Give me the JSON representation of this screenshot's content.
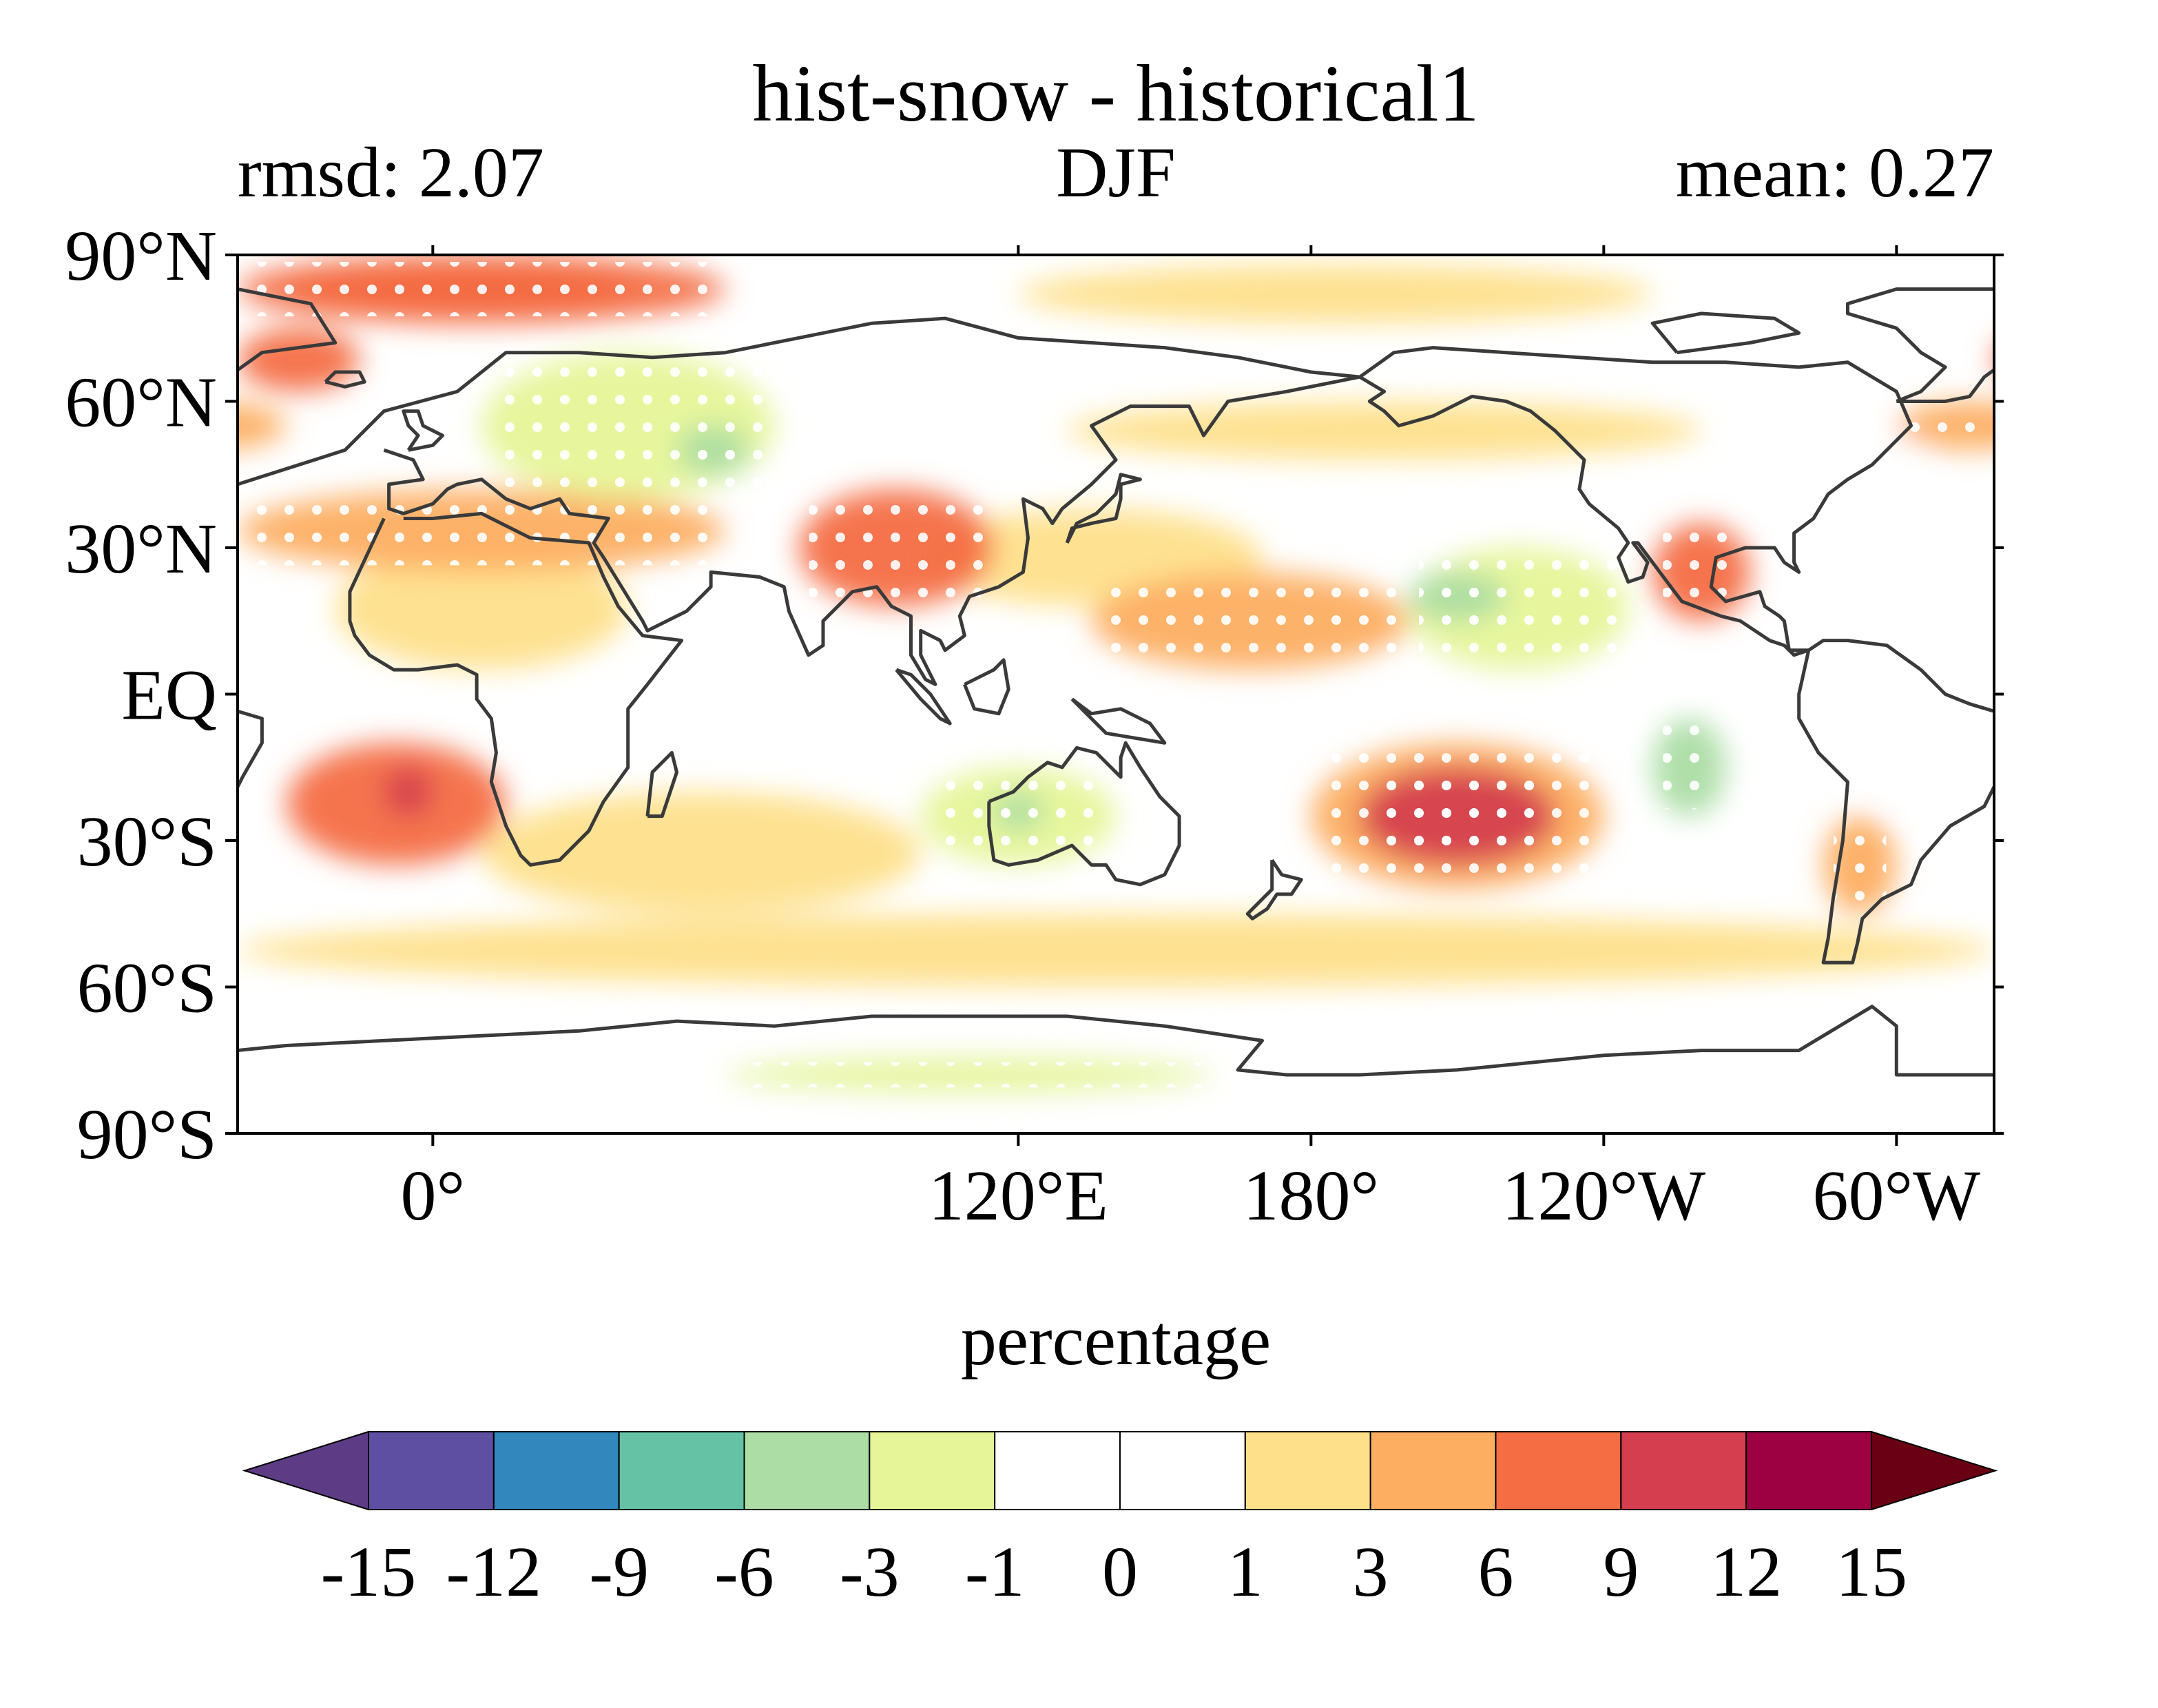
{
  "title": "hist-snow - historical1",
  "subtitle_left": "rmsd: 2.07",
  "subtitle_center": "DJF",
  "subtitle_right": "mean: 0.27",
  "map": {
    "projection": "PlateCarree",
    "central_longitude": 180,
    "lon_range": [
      -40,
      320
    ],
    "lat_range": [
      -90,
      90
    ],
    "lat_ticks": [
      {
        "value": 90,
        "label": "90°N"
      },
      {
        "value": 60,
        "label": "60°N"
      },
      {
        "value": 30,
        "label": "30°N"
      },
      {
        "value": 0,
        "label": "EQ"
      },
      {
        "value": -30,
        "label": "30°S"
      },
      {
        "value": -60,
        "label": "60°S"
      },
      {
        "value": -90,
        "label": "90°S"
      }
    ],
    "lon_ticks": [
      {
        "value": 120,
        "label": "120°E"
      },
      {
        "value": 180,
        "label": "180°"
      },
      {
        "value": 240,
        "label": "120°W"
      },
      {
        "value": 300,
        "label": "60°W"
      },
      {
        "value": 360,
        "label": "0°"
      }
    ],
    "coastline_color": "#3a3a3a",
    "stipple_color": "#ffffff"
  },
  "colorbar": {
    "label": "percentage",
    "boundaries": [
      -15,
      -12,
      -9,
      -6,
      -3,
      -1,
      0,
      1,
      3,
      6,
      9,
      12,
      15
    ],
    "tick_labels": [
      "-15",
      "-12",
      "-9",
      "-6",
      "-3",
      "-1",
      "0",
      "1",
      "3",
      "6",
      "9",
      "12",
      "15"
    ],
    "under_color": "#5e3c85",
    "over_color": "#6a0014",
    "colors": [
      "#5e4fa2",
      "#3288bd",
      "#66c2a5",
      "#abdda4",
      "#e6f598",
      "#ffffff",
      "#ffffff",
      "#fee08b",
      "#fdae61",
      "#f46d43",
      "#d53e4f",
      "#9e0142"
    ]
  },
  "chart_data": {
    "type": "heatmap",
    "title": "hist-snow - historical1",
    "variable_units": "percentage",
    "season": "DJF",
    "stats": {
      "rmsd": 2.07,
      "mean": 0.27
    },
    "xlim": [
      -40,
      320
    ],
    "ylim": [
      -90,
      90
    ],
    "anomaly_regions": [
      {
        "name": "arctic-siberia-band",
        "lon": [
          -40,
          60
        ],
        "lat": [
          76,
          90
        ],
        "value": 6
      },
      {
        "name": "arctic-eastern-band",
        "lon": [
          120,
          250
        ],
        "lat": [
          76,
          88
        ],
        "value": 1
      },
      {
        "name": "arctic-atlantic-band",
        "lon": [
          330,
          400
        ],
        "lat": [
          76,
          90
        ],
        "value": 6
      },
      {
        "name": "greenland-east",
        "lon": [
          320,
          345
        ],
        "lat": [
          62,
          75
        ],
        "value": 6
      },
      {
        "name": "north-atlantic",
        "lon": [
          300,
          330
        ],
        "lat": [
          50,
          60
        ],
        "value": 3
      },
      {
        "name": "north-africa",
        "lon": [
          340,
          400
        ],
        "lat": [
          5,
          30
        ],
        "value": 1
      },
      {
        "name": "sahara-band",
        "lon": [
          -40,
          60
        ],
        "lat": [
          25,
          42
        ],
        "value": 3
      },
      {
        "name": "east-china-sea",
        "lon": [
          75,
          115
        ],
        "lat": [
          18,
          42
        ],
        "value": 6
      },
      {
        "name": "north-pacific-band",
        "lon": [
          130,
          260
        ],
        "lat": [
          48,
          60
        ],
        "value": 1
      },
      {
        "name": "north-pacific-west",
        "lon": [
          100,
          170
        ],
        "lat": [
          18,
          38
        ],
        "value": 1
      },
      {
        "name": "central-siberia",
        "lon": [
          10,
          70
        ],
        "lat": [
          40,
          70
        ],
        "value": -3
      },
      {
        "name": "mongolia",
        "lon": [
          50,
          65
        ],
        "lat": [
          45,
          55
        ],
        "value": -6
      },
      {
        "name": "north-america-east",
        "lon": [
          270,
          305
        ],
        "lat": [
          38,
          60
        ],
        "value": -1
      },
      {
        "name": "western-pacific-subtrop",
        "lon": [
          135,
          200
        ],
        "lat": [
          5,
          25
        ],
        "value": 3
      },
      {
        "name": "central-pacific-band",
        "lon": [
          200,
          245
        ],
        "lat": [
          5,
          30
        ],
        "value": -3
      },
      {
        "name": "central-pacific-low",
        "lon": [
          200,
          220
        ],
        "lat": [
          15,
          25
        ],
        "value": -6
      },
      {
        "name": "east-pacific-low",
        "lon": [
          250,
          265
        ],
        "lat": [
          -25,
          -5
        ],
        "value": -6
      },
      {
        "name": "south-pacific-high",
        "lon": [
          190,
          230
        ],
        "lat": [
          -35,
          -15
        ],
        "value": 9
      },
      {
        "name": "south-pacific-halo",
        "lon": [
          180,
          240
        ],
        "lat": [
          -40,
          -10
        ],
        "value": 3
      },
      {
        "name": "mexico",
        "lon": [
          250,
          270
        ],
        "lat": [
          15,
          35
        ],
        "value": 6
      },
      {
        "name": "australia-interior",
        "lon": [
          100,
          140
        ],
        "lat": [
          -35,
          -15
        ],
        "value": -3
      },
      {
        "name": "australia-center",
        "lon": [
          115,
          125
        ],
        "lat": [
          -28,
          -20
        ],
        "value": -6
      },
      {
        "name": "south-indian-ocean",
        "lon": [
          10,
          100
        ],
        "lat": [
          -45,
          -20
        ],
        "value": 1
      },
      {
        "name": "south-america",
        "lon": [
          290,
          320
        ],
        "lat": [
          -25,
          5
        ],
        "value": -1
      },
      {
        "name": "argentina",
        "lon": [
          285,
          300
        ],
        "lat": [
          -45,
          -25
        ],
        "value": 3
      },
      {
        "name": "south-atlantic-high",
        "lon": [
          330,
          375
        ],
        "lat": [
          -35,
          -10
        ],
        "value": 6
      },
      {
        "name": "south-atlantic-center",
        "lon": [
          350,
          360
        ],
        "lat": [
          -25,
          -15
        ],
        "value": 9
      },
      {
        "name": "southern-ocean-band",
        "lon": [
          -40,
          320
        ],
        "lat": [
          -60,
          -45
        ],
        "value": 1
      },
      {
        "name": "antarctica-coast",
        "lon": [
          -40,
          320
        ],
        "lat": [
          -90,
          -70
        ],
        "value": -1
      },
      {
        "name": "antarctica-low",
        "lon": [
          60,
          160
        ],
        "lat": [
          -82,
          -74
        ],
        "value": -3
      }
    ],
    "colorbar_ticks": [
      -15,
      -12,
      -9,
      -6,
      -3,
      -1,
      0,
      1,
      3,
      6,
      9,
      12,
      15
    ]
  }
}
